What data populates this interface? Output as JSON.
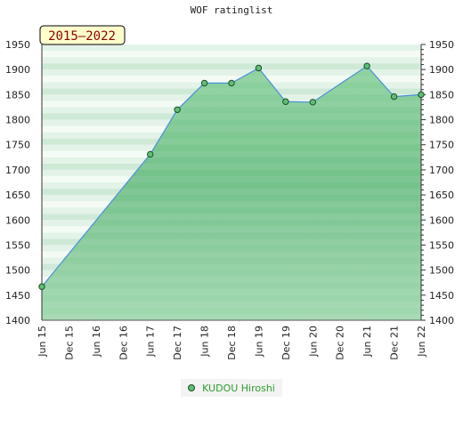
{
  "chart_data": {
    "type": "area",
    "title": "WOF ratinglist",
    "period_badge": "2015–2022",
    "xlabel": "",
    "ylabel": "",
    "ylim": [
      1400,
      1950
    ],
    "y_ticks": [
      1400,
      1450,
      1500,
      1550,
      1600,
      1650,
      1700,
      1750,
      1800,
      1850,
      1900,
      1950
    ],
    "x_ticks": [
      "Jun 15",
      "Dec 15",
      "Jun 16",
      "Dec 16",
      "Jun 17",
      "Dec 17",
      "Jun 18",
      "Dec 18",
      "Jun 19",
      "Dec 19",
      "Jun 20",
      "Dec 20",
      "Jun 21",
      "Dec 21",
      "Jun 22"
    ],
    "legend_position": "bottom",
    "grid": true,
    "series": [
      {
        "name": "KUDOU Hiroshi",
        "color": "#5fbf75",
        "line_color": "#4a90d9",
        "x": [
          "Jun 15",
          "Jun 17",
          "Dec 17",
          "Jun 18",
          "Dec 18",
          "Jun 19",
          "Dec 19",
          "Jun 20",
          "Jun 21",
          "Dec 21",
          "Jun 22"
        ],
        "values": [
          1467,
          1731,
          1820,
          1873,
          1873,
          1903,
          1836,
          1835,
          1907,
          1846,
          1850
        ]
      }
    ]
  }
}
